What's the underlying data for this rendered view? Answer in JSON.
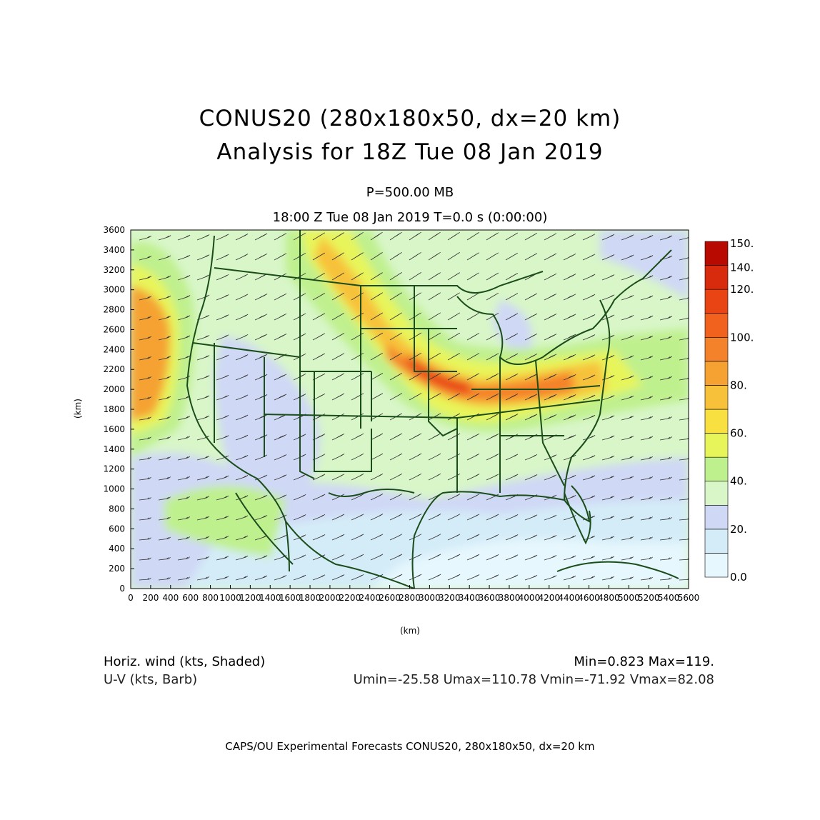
{
  "header": {
    "title_line1": "CONUS20 (280x180x50, dx=20 km)",
    "title_line2": "Analysis for 18Z Tue 08 Jan 2019",
    "level": "P=500.00 MB",
    "time_line": "18:00 Z Tue 08 Jan 2019    T=0.0 s (0:00:00)"
  },
  "axes": {
    "x_label": "(km)",
    "y_label": "(km)",
    "x_ticks": [
      "0",
      "200",
      "400",
      "600",
      "800",
      "1000",
      "1200",
      "1400",
      "1600",
      "1800",
      "2000",
      "2200",
      "2400",
      "2600",
      "2800",
      "3000",
      "3200",
      "3400",
      "3600",
      "3800",
      "4000",
      "4200",
      "4400",
      "4600",
      "4800",
      "5000",
      "5200",
      "5400",
      "5600"
    ],
    "y_ticks": [
      "0",
      "200",
      "400",
      "600",
      "800",
      "1000",
      "1200",
      "1400",
      "1600",
      "1800",
      "2000",
      "2200",
      "2400",
      "2600",
      "2800",
      "3000",
      "3200",
      "3400",
      "3600"
    ]
  },
  "colorbar": {
    "labels": [
      "0.0",
      "20.",
      "40.",
      "60.",
      "80.",
      "100.",
      "120.",
      "140.",
      "150."
    ],
    "colors": [
      "#e6f7fd",
      "#d4ecf8",
      "#cfd8f5",
      "#d8f6c8",
      "#bff08e",
      "#e8f55a",
      "#f8e040",
      "#f7c23a",
      "#f5a232",
      "#f4822b",
      "#f0621e",
      "#e84414",
      "#d82a0c",
      "#b80a00"
    ]
  },
  "field": {
    "shaded_name": "Horiz. wind (kts, Shaded)",
    "barb_name": "U-V (kts, Barb)",
    "minmax": "Min=0.823 Max=119.",
    "uv_stats": "Umin=-25.58 Umax=110.78 Vmin=-71.92 Vmax=82.08",
    "map_line_color": "#1a4d1a"
  },
  "footer": {
    "text": "CAPS/OU Experimental Forecasts   CONUS20, 280x180x50, dx=20 km"
  }
}
